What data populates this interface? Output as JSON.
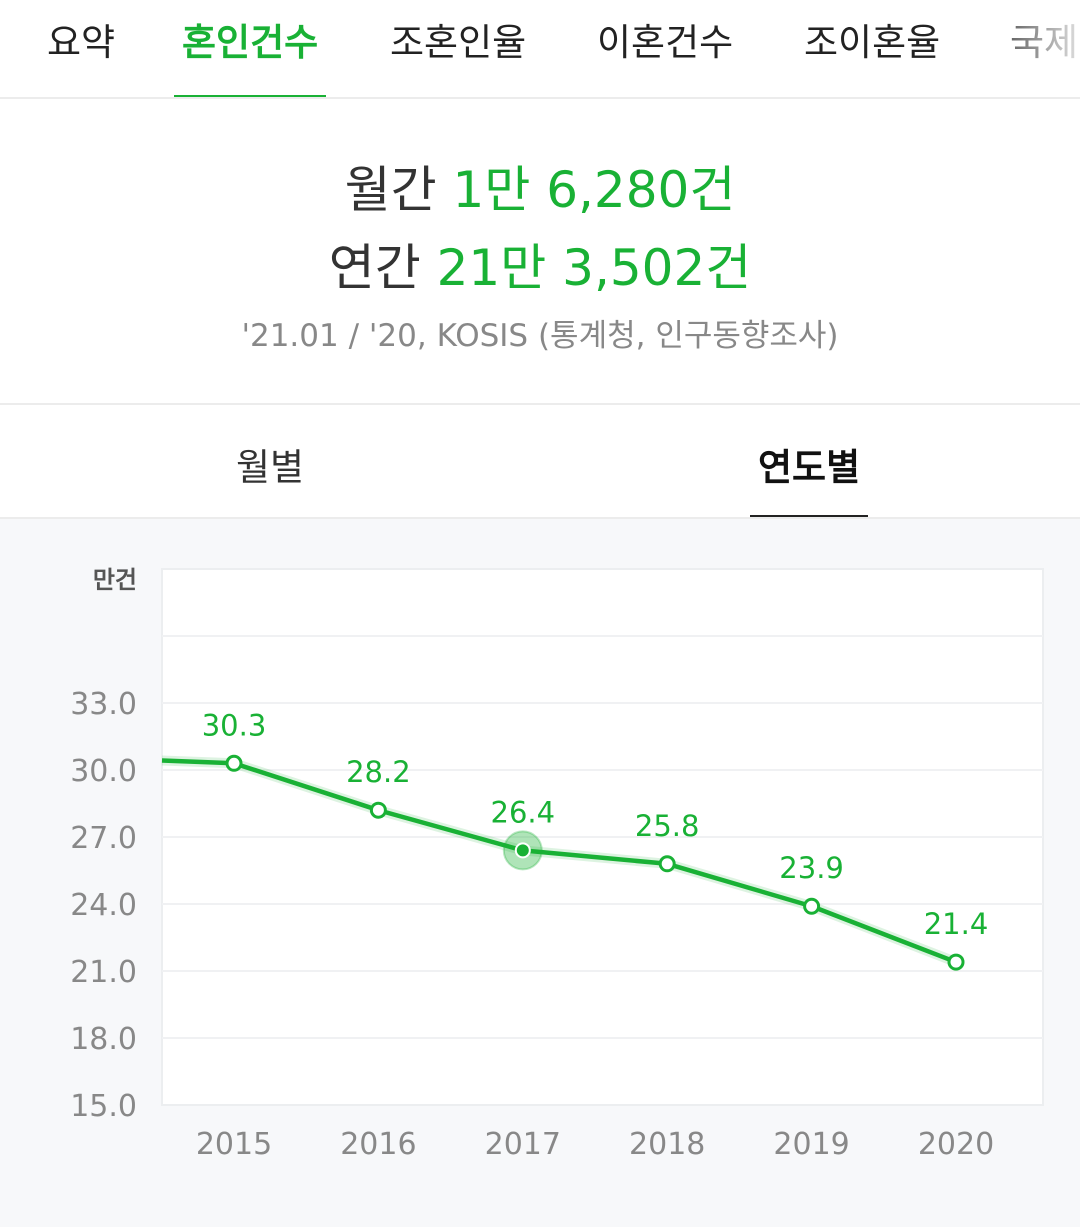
{
  "tabs": [
    {
      "label": "요약",
      "active": false
    },
    {
      "label": "혼인건수",
      "active": true
    },
    {
      "label": "조혼인율",
      "active": false
    },
    {
      "label": "이혼건수",
      "active": false
    },
    {
      "label": "조이혼율",
      "active": false
    },
    {
      "label": "국제",
      "active": false
    }
  ],
  "summary": {
    "monthly_label": "월간",
    "monthly_value": "1만 6,280건",
    "yearly_label": "연간",
    "yearly_value": "21만 3,502건",
    "source": "'21.01 / '20, KOSIS (통계청, 인구동향조사)"
  },
  "subtabs": [
    {
      "label": "월별",
      "active": false
    },
    {
      "label": "연도별",
      "active": true
    }
  ],
  "colors": {
    "accent": "#19b135",
    "axis_text": "#888888"
  },
  "chart_data": {
    "type": "line",
    "unit_label": "만건",
    "categories": [
      "2015",
      "2016",
      "2017",
      "2018",
      "2019",
      "2020"
    ],
    "values": [
      30.3,
      28.2,
      26.4,
      25.8,
      23.9,
      21.4
    ],
    "data_labels": [
      "30.3",
      "28.2",
      "26.4",
      "25.8",
      "23.9",
      "21.4"
    ],
    "y_ticks": [
      "15.0",
      "18.0",
      "21.0",
      "24.0",
      "27.0",
      "30.0",
      "33.0"
    ],
    "ylim": [
      15,
      39
    ],
    "grid": true,
    "highlighted": "2017",
    "legend": "none"
  }
}
